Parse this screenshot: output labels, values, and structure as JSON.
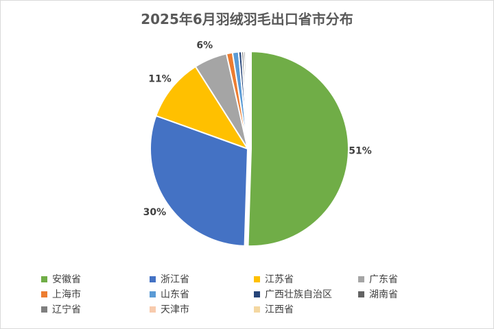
{
  "chart_data": {
    "type": "pie",
    "title": "2025年6月羽绒羽毛出口省市分布",
    "legend_position": "bottom",
    "slices": [
      {
        "name": "安徽省",
        "value": 50.5,
        "label": "51%",
        "color": "#70ad47"
      },
      {
        "name": "浙江省",
        "value": 30.0,
        "label": "30%",
        "color": "#4472c4"
      },
      {
        "name": "江苏省",
        "value": 10.5,
        "label": "11%",
        "color": "#ffc000"
      },
      {
        "name": "广东省",
        "value": 5.5,
        "label": "6%",
        "color": "#a5a5a5"
      },
      {
        "name": "上海市",
        "value": 1.0,
        "label": "",
        "color": "#ed7d31"
      },
      {
        "name": "山东省",
        "value": 1.0,
        "label": "",
        "color": "#5b9bd5"
      },
      {
        "name": "广西壮族自治区",
        "value": 0.5,
        "label": "",
        "color": "#264478"
      },
      {
        "name": "湖南省",
        "value": 0.35,
        "label": "",
        "color": "#636363"
      },
      {
        "name": "辽宁省",
        "value": 0.3,
        "label": "",
        "color": "#7f7f7f"
      },
      {
        "name": "天津市",
        "value": 0.2,
        "label": "",
        "color": "#f8cbad"
      },
      {
        "name": "江西省",
        "value": 0.15,
        "label": "",
        "color": "#f4d7a1"
      }
    ]
  }
}
